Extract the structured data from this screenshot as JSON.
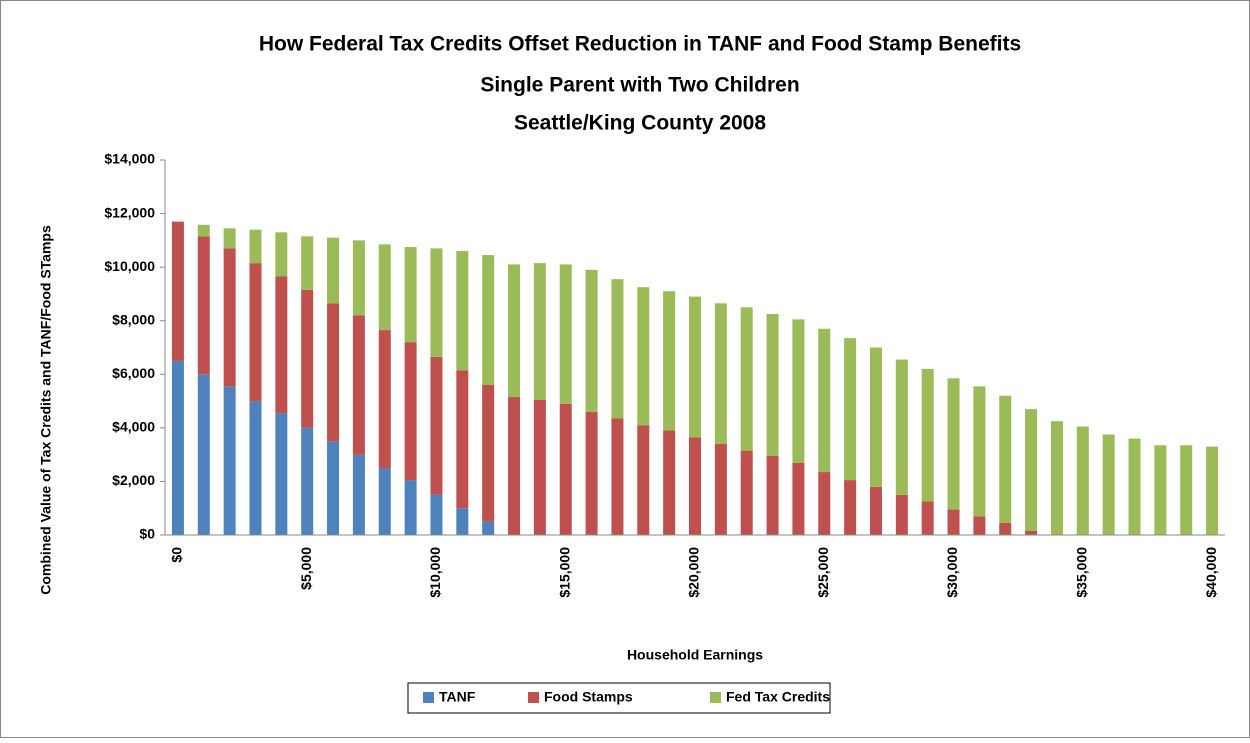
{
  "chart_data": {
    "type": "stacked_bar",
    "title": [
      "How Federal Tax Credits Offset Reduction in TANF and Food Stamp Benefits",
      "Single Parent with Two Children",
      "Seattle/King County 2008"
    ],
    "x_label": "Household Earnings",
    "y_label": "Combined Value of Tax Credits and TANF/Food STamps",
    "categories": [
      "$0",
      null,
      null,
      null,
      null,
      "$5,000",
      null,
      null,
      null,
      null,
      "$10,000",
      null,
      null,
      null,
      null,
      "$15,000",
      null,
      null,
      null,
      null,
      "$20,000",
      null,
      null,
      null,
      null,
      "$25,000",
      null,
      null,
      null,
      null,
      "$30,000",
      null,
      null,
      null,
      null,
      "$35,000",
      null,
      null,
      null,
      null,
      "$40,000"
    ],
    "series": [
      {
        "name": "TANF",
        "color": "#4f81bd",
        "values": [
          6500,
          6000,
          5550,
          5000,
          4550,
          4000,
          3500,
          3000,
          2500,
          2050,
          1500,
          1000,
          500,
          0,
          0,
          0,
          0,
          0,
          0,
          0,
          0,
          0,
          0,
          0,
          0,
          0,
          0,
          0,
          0,
          0,
          0,
          0,
          0,
          0,
          0,
          0,
          0,
          0,
          0,
          0,
          0
        ]
      },
      {
        "name": "Food Stamps",
        "color": "#c0504d",
        "values": [
          5200,
          5150,
          5150,
          5150,
          5100,
          5150,
          5150,
          5200,
          5150,
          5150,
          5150,
          5150,
          5100,
          5150,
          5050,
          4900,
          4600,
          4350,
          4100,
          3900,
          3650,
          3400,
          3150,
          2950,
          2700,
          2350,
          2050,
          1800,
          1500,
          1250,
          950,
          700,
          450,
          150,
          0,
          0,
          0,
          0,
          0,
          0,
          0
        ]
      },
      {
        "name": "Fed Tax Credits",
        "color": "#9bbb59",
        "values": [
          0,
          430,
          750,
          1250,
          1650,
          2000,
          2450,
          2800,
          3200,
          3550,
          4050,
          4450,
          4850,
          4950,
          5100,
          5200,
          5300,
          5200,
          5150,
          5200,
          5250,
          5250,
          5350,
          5300,
          5350,
          5350,
          5300,
          5200,
          5050,
          4950,
          4900,
          4850,
          4750,
          4550,
          4250,
          4050,
          3750,
          3600,
          3350,
          3350,
          3300
        ]
      }
    ],
    "ylim": [
      0,
      14000
    ],
    "yticks": [
      {
        "value": 0,
        "label": "$0"
      },
      {
        "value": 2000,
        "label": "$2,000"
      },
      {
        "value": 4000,
        "label": "$4,000"
      },
      {
        "value": 6000,
        "label": "$6,000"
      },
      {
        "value": 8000,
        "label": "$8,000"
      },
      {
        "value": 10000,
        "label": "$10,000"
      },
      {
        "value": 12000,
        "label": "$12,000"
      },
      {
        "value": 14000,
        "label": "$14,000"
      }
    ],
    "grid": false,
    "legend": "bottom"
  }
}
